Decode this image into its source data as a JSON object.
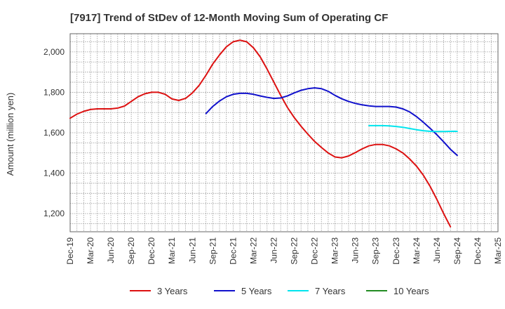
{
  "chart_data": {
    "type": "line",
    "title": "[7917]  Trend of StDev of 12-Month Moving Sum of Operating CF",
    "ylabel": "Amount (million yen)",
    "xlabel": "",
    "ylim": [
      1110,
      2090
    ],
    "yticks": [
      1200,
      1400,
      1600,
      1800,
      2000
    ],
    "ytick_labels": [
      "1,200",
      "1,400",
      "1,600",
      "1,800",
      "2,000"
    ],
    "x_range": [
      "2019-12",
      "2025-03"
    ],
    "x_ticks": [
      "2019-12",
      "2020-03",
      "2020-06",
      "2020-09",
      "2020-12",
      "2021-03",
      "2021-06",
      "2021-09",
      "2021-12",
      "2022-03",
      "2022-06",
      "2022-09",
      "2022-12",
      "2023-03",
      "2023-06",
      "2023-09",
      "2023-12",
      "2024-03",
      "2024-06",
      "2024-09",
      "2024-12",
      "2025-03"
    ],
    "x_tick_labels": [
      "Dec-19",
      "Mar-20",
      "Jun-20",
      "Sep-20",
      "Dec-20",
      "Mar-21",
      "Jun-21",
      "Sep-21",
      "Dec-21",
      "Mar-22",
      "Jun-22",
      "Sep-22",
      "Dec-22",
      "Mar-23",
      "Jun-23",
      "Sep-23",
      "Dec-23",
      "Mar-24",
      "Jun-24",
      "Sep-24",
      "Dec-24",
      "Mar-25"
    ],
    "grid": true,
    "legend_position": "bottom",
    "series": [
      {
        "name": "3 Years",
        "color": "#dd1111",
        "points": [
          [
            "2019-12",
            1672
          ],
          [
            "2020-01",
            1692
          ],
          [
            "2020-02",
            1706
          ],
          [
            "2020-03",
            1715
          ],
          [
            "2020-04",
            1718
          ],
          [
            "2020-05",
            1718
          ],
          [
            "2020-06",
            1718
          ],
          [
            "2020-07",
            1722
          ],
          [
            "2020-08",
            1732
          ],
          [
            "2020-09",
            1755
          ],
          [
            "2020-10",
            1778
          ],
          [
            "2020-11",
            1793
          ],
          [
            "2020-12",
            1800
          ],
          [
            "2021-01",
            1800
          ],
          [
            "2021-02",
            1790
          ],
          [
            "2021-03",
            1767
          ],
          [
            "2021-04",
            1760
          ],
          [
            "2021-05",
            1770
          ],
          [
            "2021-06",
            1797
          ],
          [
            "2021-07",
            1835
          ],
          [
            "2021-08",
            1885
          ],
          [
            "2021-09",
            1940
          ],
          [
            "2021-10",
            1985
          ],
          [
            "2021-11",
            2025
          ],
          [
            "2021-12",
            2050
          ],
          [
            "2022-01",
            2058
          ],
          [
            "2022-02",
            2050
          ],
          [
            "2022-03",
            2020
          ],
          [
            "2022-04",
            1975
          ],
          [
            "2022-05",
            1915
          ],
          [
            "2022-06",
            1850
          ],
          [
            "2022-07",
            1785
          ],
          [
            "2022-08",
            1725
          ],
          [
            "2022-09",
            1675
          ],
          [
            "2022-10",
            1632
          ],
          [
            "2022-11",
            1593
          ],
          [
            "2022-12",
            1557
          ],
          [
            "2023-01",
            1527
          ],
          [
            "2023-02",
            1500
          ],
          [
            "2023-03",
            1480
          ],
          [
            "2023-04",
            1476
          ],
          [
            "2023-05",
            1485
          ],
          [
            "2023-06",
            1502
          ],
          [
            "2023-07",
            1520
          ],
          [
            "2023-08",
            1535
          ],
          [
            "2023-09",
            1542
          ],
          [
            "2023-10",
            1542
          ],
          [
            "2023-11",
            1535
          ],
          [
            "2023-12",
            1520
          ],
          [
            "2024-01",
            1500
          ],
          [
            "2024-02",
            1470
          ],
          [
            "2024-03",
            1435
          ],
          [
            "2024-04",
            1390
          ],
          [
            "2024-05",
            1335
          ],
          [
            "2024-06",
            1270
          ],
          [
            "2024-07",
            1200
          ],
          [
            "2024-08",
            1135
          ]
        ]
      },
      {
        "name": "5 Years",
        "color": "#1111cc",
        "points": [
          [
            "2021-08",
            1695
          ],
          [
            "2021-09",
            1730
          ],
          [
            "2021-10",
            1757
          ],
          [
            "2021-11",
            1778
          ],
          [
            "2021-12",
            1790
          ],
          [
            "2022-01",
            1795
          ],
          [
            "2022-02",
            1795
          ],
          [
            "2022-03",
            1790
          ],
          [
            "2022-04",
            1782
          ],
          [
            "2022-05",
            1775
          ],
          [
            "2022-06",
            1770
          ],
          [
            "2022-07",
            1772
          ],
          [
            "2022-08",
            1782
          ],
          [
            "2022-09",
            1797
          ],
          [
            "2022-10",
            1810
          ],
          [
            "2022-11",
            1818
          ],
          [
            "2022-12",
            1822
          ],
          [
            "2023-01",
            1818
          ],
          [
            "2023-02",
            1805
          ],
          [
            "2023-03",
            1785
          ],
          [
            "2023-04",
            1768
          ],
          [
            "2023-05",
            1755
          ],
          [
            "2023-06",
            1745
          ],
          [
            "2023-07",
            1738
          ],
          [
            "2023-08",
            1733
          ],
          [
            "2023-09",
            1730
          ],
          [
            "2023-10",
            1730
          ],
          [
            "2023-11",
            1730
          ],
          [
            "2023-12",
            1727
          ],
          [
            "2024-01",
            1718
          ],
          [
            "2024-02",
            1703
          ],
          [
            "2024-03",
            1680
          ],
          [
            "2024-04",
            1652
          ],
          [
            "2024-05",
            1622
          ],
          [
            "2024-06",
            1590
          ],
          [
            "2024-07",
            1555
          ],
          [
            "2024-08",
            1518
          ],
          [
            "2024-09",
            1488
          ]
        ]
      },
      {
        "name": "7 Years",
        "color": "#00e5ee",
        "points": [
          [
            "2023-08",
            1635
          ],
          [
            "2023-09",
            1635
          ],
          [
            "2023-10",
            1635
          ],
          [
            "2023-11",
            1634
          ],
          [
            "2023-12",
            1631
          ],
          [
            "2024-01",
            1627
          ],
          [
            "2024-02",
            1621
          ],
          [
            "2024-03",
            1615
          ],
          [
            "2024-04",
            1610
          ],
          [
            "2024-05",
            1607
          ],
          [
            "2024-06",
            1606
          ],
          [
            "2024-07",
            1606
          ],
          [
            "2024-08",
            1607
          ],
          [
            "2024-09",
            1607
          ]
        ]
      },
      {
        "name": "10 Years",
        "color": "#228b22",
        "points": []
      }
    ]
  }
}
